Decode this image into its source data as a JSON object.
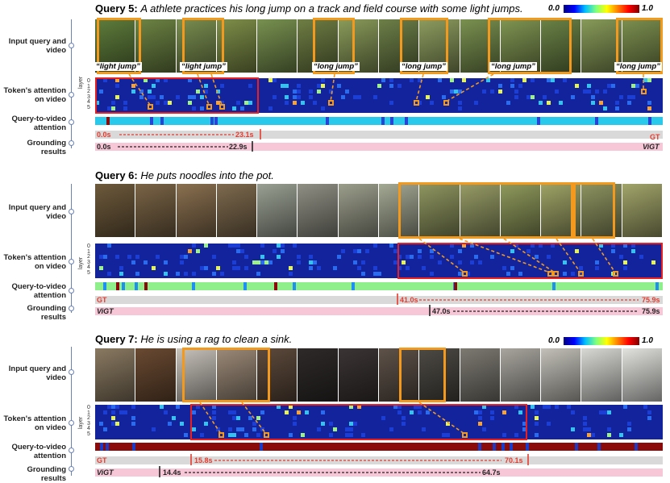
{
  "colorbar": {
    "min": "0.0",
    "max": "1.0"
  },
  "labels": {
    "input": "Input query and video",
    "token_attn": "Token's attention on video",
    "q2v": "Query-to-video attention",
    "grounding": "Grounding results",
    "layer": "layer"
  },
  "layer_ticks": [
    "0",
    "1",
    "2",
    "3",
    "4",
    "5"
  ],
  "queries": [
    {
      "id": "q5",
      "title_prefix": "Query 5:",
      "title_text": "A athlete practices his long jump on a track and field course with some light jumps.",
      "frame_colors": [
        "#5f7d3c",
        "#6d8444",
        "#7a8e50",
        "#7f8f49",
        "#789150",
        "#6f7e44",
        "#8a9b5a",
        "#6d7f48",
        "#8d9c5f",
        "#7a9150",
        "#809552",
        "#6a8246",
        "#889b59",
        "#7c8f4f"
      ],
      "tags": [
        "“light jump”",
        "“light jump”",
        "“long jump”",
        "“long jump”",
        "“long jump”",
        "“long jump”"
      ],
      "gt": {
        "label": "GT",
        "start": "0.0s",
        "end": "23.1s"
      },
      "pred": {
        "label": "ViGT",
        "start": "0.0s",
        "end": "22.9s"
      },
      "q2v_base": "#28c9ea"
    },
    {
      "id": "q6",
      "title_prefix": "Query 6:",
      "title_text": "He puts noodles into the pot.",
      "frame_colors": [
        "#6e5a3c",
        "#7a6446",
        "#8a7050",
        "#7e6a4e",
        "#9aa093",
        "#8f8f84",
        "#9c9e8c",
        "#a4a994",
        "#8f9660",
        "#979c66",
        "#8f9a5c",
        "#9ea366",
        "#8d9360",
        "#a2a56a"
      ],
      "gt": {
        "label": "GT",
        "start": "41.0s",
        "end": "75.9s"
      },
      "pred": {
        "label": "ViGT",
        "start": "47.0s",
        "end": "75.9s"
      },
      "q2v_base": "#8fef8a"
    },
    {
      "id": "q7",
      "title_prefix": "Query 7:",
      "title_text": "He is using a rag to clean a sink.",
      "frame_colors": [
        "#8a7a62",
        "#6a4a32",
        "#c8c3bb",
        "#9c8a78",
        "#5d4a3c",
        "#2f2a2a",
        "#3b3434",
        "#5e5249",
        "#4d4a44",
        "#7d7a72",
        "#a8a59e",
        "#c2c0b8",
        "#d8d8d4",
        "#e2e2de"
      ],
      "gt": {
        "label": "GT",
        "start": "15.8s",
        "end": "70.1s"
      },
      "pred": {
        "label": "ViGT",
        "start": "14.4s",
        "end": "64.7s"
      },
      "q2v_base": "#8b0a0a"
    }
  ]
}
